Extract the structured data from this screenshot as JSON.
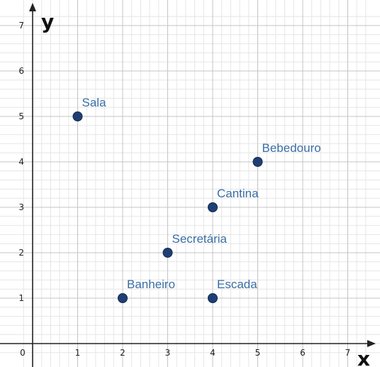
{
  "chart_data": {
    "type": "scatter",
    "title": "",
    "xlabel": "x",
    "ylabel": "y",
    "xlim": [
      -0.2,
      7.5
    ],
    "ylim": [
      -0.2,
      7.3
    ],
    "x_ticks": [
      "0",
      "1",
      "2",
      "3",
      "4",
      "5",
      "6",
      "7"
    ],
    "y_ticks": [
      "1",
      "2",
      "3",
      "4",
      "5",
      "6",
      "7"
    ],
    "grid": true,
    "minor_grid": true,
    "points": [
      {
        "label": "Sala",
        "x": 1,
        "y": 5
      },
      {
        "label": "Bebedouro",
        "x": 5,
        "y": 4
      },
      {
        "label": "Cantina",
        "x": 4,
        "y": 3
      },
      {
        "label": "Secretária",
        "x": 3,
        "y": 2
      },
      {
        "label": "Banheiro",
        "x": 2,
        "y": 1
      },
      {
        "label": "Escada",
        "x": 4,
        "y": 1
      }
    ],
    "point_color": "#1f3f73",
    "label_color": "#3a6ea5"
  }
}
